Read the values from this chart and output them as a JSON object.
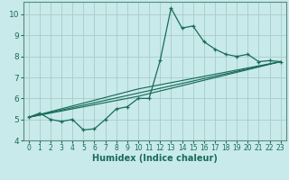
{
  "xlabel": "Humidex (Indice chaleur)",
  "bg_color": "#c8eaea",
  "grid_color": "#a8ccca",
  "line_color": "#1a6b5a",
  "spine_color": "#5a8a80",
  "xlim": [
    -0.5,
    23.5
  ],
  "ylim": [
    4,
    10.6
  ],
  "xticks": [
    0,
    1,
    2,
    3,
    4,
    5,
    6,
    7,
    8,
    9,
    10,
    11,
    12,
    13,
    14,
    15,
    16,
    17,
    18,
    19,
    20,
    21,
    22,
    23
  ],
  "yticks": [
    4,
    5,
    6,
    7,
    8,
    9,
    10
  ],
  "series1_x": [
    0,
    1,
    2,
    3,
    4,
    5,
    6,
    7,
    8,
    9,
    10,
    11,
    12,
    13,
    14,
    15,
    16,
    17,
    18,
    19,
    20,
    21,
    22,
    23
  ],
  "series1_y": [
    5.1,
    5.3,
    5.0,
    4.9,
    5.0,
    4.5,
    4.55,
    5.0,
    5.5,
    5.6,
    6.0,
    6.0,
    7.8,
    10.3,
    9.35,
    9.45,
    8.7,
    8.35,
    8.1,
    8.0,
    8.1,
    7.75,
    7.8,
    7.75
  ],
  "line2_x": [
    0,
    23
  ],
  "line2_y": [
    5.1,
    7.75
  ],
  "line3_x": [
    0,
    10,
    23
  ],
  "line3_y": [
    5.1,
    6.1,
    7.75
  ],
  "line4_x": [
    0,
    10,
    23
  ],
  "line4_y": [
    5.1,
    6.45,
    7.75
  ]
}
